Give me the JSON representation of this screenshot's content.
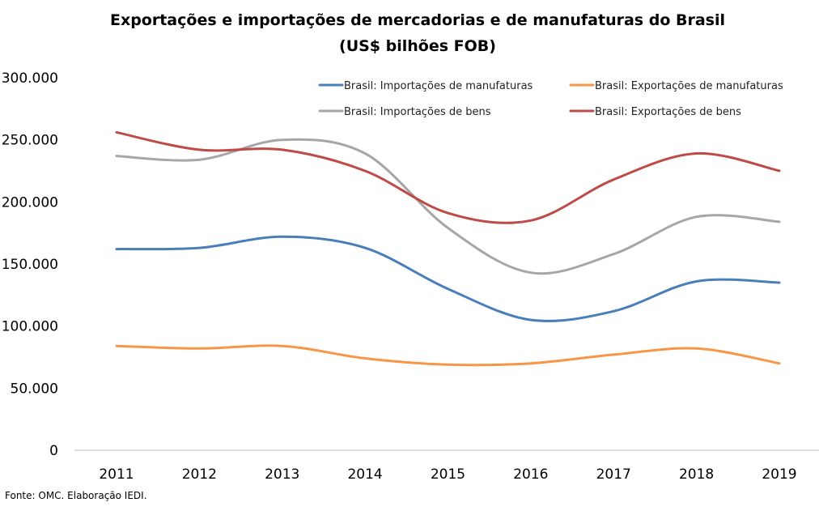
{
  "chart_data": {
    "type": "line",
    "title": "Exportações e importações de mercadorias e de manufaturas do Brasil",
    "subtitle": "(US$ bilhões FOB)",
    "source": "Fonte: OMC. Elaboração IEDI.",
    "categories": [
      "2011",
      "2012",
      "2013",
      "2014",
      "2015",
      "2016",
      "2017",
      "2018",
      "2019"
    ],
    "ylim": [
      0,
      300000
    ],
    "yticks": [
      0,
      50000,
      100000,
      150000,
      200000,
      250000,
      300000
    ],
    "ytick_labels": [
      "0",
      "50.000",
      "100.000",
      "150.000",
      "200.000",
      "250.000",
      "300.000"
    ],
    "grid": false,
    "legend_position": "top-right",
    "series": [
      {
        "name": "Brasil: Importações de manufaturas",
        "color": "#4A7EBB",
        "values": [
          162000,
          163000,
          172000,
          163000,
          130000,
          105000,
          112000,
          136000,
          135000
        ]
      },
      {
        "name": "Brasil: Exportações de manufaturas",
        "color": "#F79646",
        "values": [
          84000,
          82000,
          84000,
          74000,
          69000,
          70000,
          77000,
          82000,
          70000
        ]
      },
      {
        "name": "Brasil: Importações de bens",
        "color": "#A6A6A6",
        "values": [
          237000,
          234000,
          250000,
          239000,
          179000,
          143000,
          158000,
          188000,
          184000
        ]
      },
      {
        "name": "Brasil: Exportações de bens",
        "color": "#BE4B48",
        "values": [
          256000,
          242000,
          242000,
          225000,
          191000,
          185000,
          218000,
          239000,
          225000
        ]
      }
    ]
  }
}
